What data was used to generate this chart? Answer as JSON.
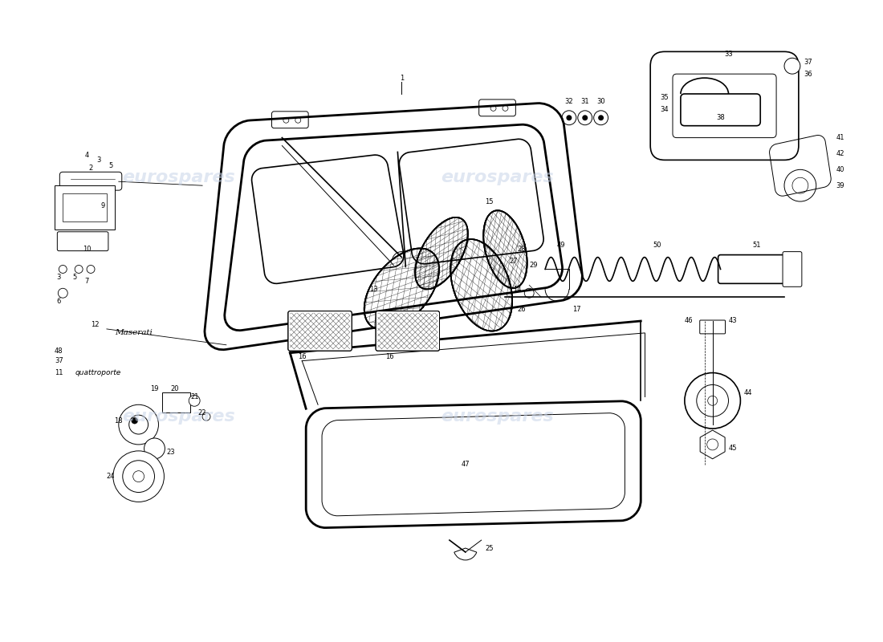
{
  "background_color": "#ffffff",
  "line_color": "#000000",
  "watermark_color": "#c8d4e8",
  "watermark_text": "eurospares",
  "fig_width": 11.0,
  "fig_height": 8.0,
  "dpi": 100
}
